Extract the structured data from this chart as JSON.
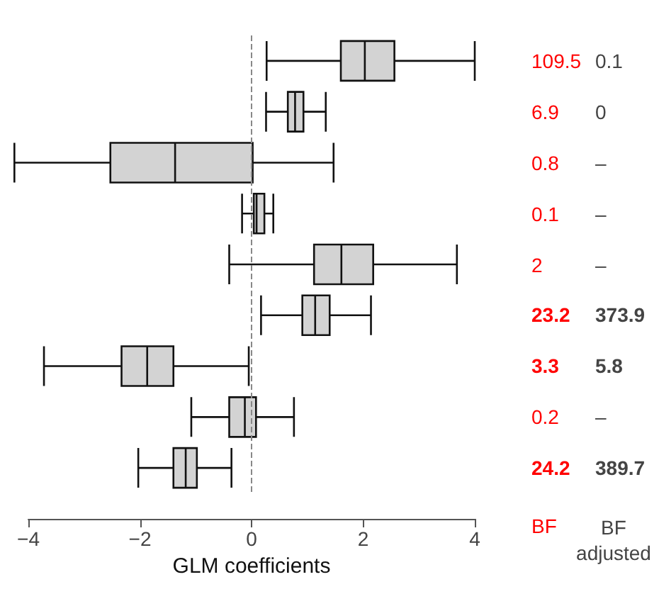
{
  "chart_data": {
    "type": "box",
    "orientation": "horizontal",
    "xlabel": "GLM coefficients",
    "categories": [
      null,
      null,
      null,
      null,
      null,
      null,
      null,
      null,
      null
    ],
    "color": "#d3d3d3",
    "boxes": [
      {
        "low": 0.27,
        "q1": 1.6,
        "median": 2.03,
        "q3": 2.56,
        "high": 4.0
      },
      {
        "low": 0.26,
        "q1": 0.65,
        "median": 0.78,
        "q3": 0.93,
        "high": 1.33
      },
      {
        "low": -4.25,
        "q1": -2.53,
        "median": -1.37,
        "q3": 0.02,
        "high": 1.47
      },
      {
        "low": -0.17,
        "q1": 0.04,
        "median": 0.09,
        "q3": 0.23,
        "high": 0.39
      },
      {
        "low": -0.4,
        "q1": 1.12,
        "median": 1.61,
        "q3": 2.18,
        "high": 3.68
      },
      {
        "low": 0.17,
        "q1": 0.91,
        "median": 1.14,
        "q3": 1.4,
        "high": 2.14
      },
      {
        "low": -3.72,
        "q1": -2.33,
        "median": -1.87,
        "q3": -1.4,
        "high": -0.05
      },
      {
        "low": -1.08,
        "q1": -0.4,
        "median": -0.12,
        "q3": 0.08,
        "high": 0.76
      },
      {
        "low": -2.03,
        "q1": -1.4,
        "median": -1.18,
        "q3": -0.98,
        "high": -0.36
      }
    ],
    "xlim": [
      -4,
      4
    ],
    "xticks": [
      {
        "value": -4,
        "label": "−4"
      },
      {
        "value": -2,
        "label": "−2"
      },
      0,
      2,
      4
    ],
    "ref_lines": [
      {
        "axis": "x",
        "value": 0,
        "color": "#888888",
        "line_style": "dashed"
      }
    ],
    "annotations": [
      "109.5",
      "6.9",
      "0.8",
      "0.1",
      "2",
      "23.2",
      "3.3",
      "0.2",
      "24.2",
      "0.1",
      "0",
      "–",
      "–",
      "–",
      "373.9",
      "5.8",
      "–",
      "389.7",
      "BF",
      "BF adjusted"
    ]
  }
}
